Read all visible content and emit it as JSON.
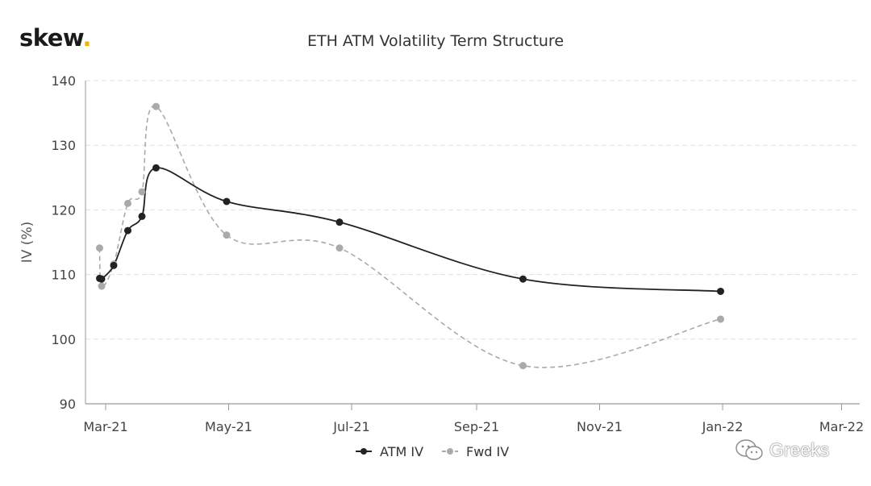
{
  "logo": {
    "text": "skew",
    "dot": "."
  },
  "watermark": {
    "text": "Greeks",
    "icon": "wechat-icon"
  },
  "colors": {
    "atm": "#222222",
    "fwd": "#aaaaaa",
    "grid": "#e0e0e0",
    "axis": "#999999"
  },
  "chart_data": {
    "type": "line",
    "title": "ETH ATM Volatility Term Structure",
    "xlabel": "",
    "ylabel": "IV (%)",
    "ylim": [
      90,
      140
    ],
    "yticks": [
      90,
      100,
      110,
      120,
      130,
      140
    ],
    "xlim": [
      "2021-02-19",
      "2022-03-10"
    ],
    "xticks": [
      {
        "label": "Mar-21",
        "date": "2021-03-01"
      },
      {
        "label": "May-21",
        "date": "2021-05-01"
      },
      {
        "label": "Jul-21",
        "date": "2021-07-01"
      },
      {
        "label": "Sep-21",
        "date": "2021-09-01"
      },
      {
        "label": "Nov-21",
        "date": "2021-11-01"
      },
      {
        "label": "Jan-22",
        "date": "2022-01-01"
      },
      {
        "label": "Mar-22",
        "date": "2022-03-01"
      }
    ],
    "grid": true,
    "legend": "bottom-center",
    "series": [
      {
        "name": "ATM IV",
        "style": "solid",
        "points": [
          {
            "x": "2021-02-26",
            "y": 109.4
          },
          {
            "x": "2021-02-27",
            "y": 109.3
          },
          {
            "x": "2021-03-05",
            "y": 111.4
          },
          {
            "x": "2021-03-12",
            "y": 116.8
          },
          {
            "x": "2021-03-19",
            "y": 119.0
          },
          {
            "x": "2021-03-26",
            "y": 126.5
          },
          {
            "x": "2021-04-30",
            "y": 121.3
          },
          {
            "x": "2021-06-25",
            "y": 118.1
          },
          {
            "x": "2021-09-24",
            "y": 109.3
          },
          {
            "x": "2021-12-31",
            "y": 107.4
          }
        ]
      },
      {
        "name": "Fwd IV",
        "style": "dashed",
        "points": [
          {
            "x": "2021-02-26",
            "y": 114.1
          },
          {
            "x": "2021-02-27",
            "y": 108.2
          },
          {
            "x": "2021-03-05",
            "y": 111.6
          },
          {
            "x": "2021-03-12",
            "y": 121.0
          },
          {
            "x": "2021-03-19",
            "y": 122.8
          },
          {
            "x": "2021-03-26",
            "y": 136.0
          },
          {
            "x": "2021-04-30",
            "y": 116.1
          },
          {
            "x": "2021-06-25",
            "y": 114.1
          },
          {
            "x": "2021-09-24",
            "y": 95.9
          },
          {
            "x": "2021-12-31",
            "y": 103.1
          }
        ]
      }
    ]
  }
}
